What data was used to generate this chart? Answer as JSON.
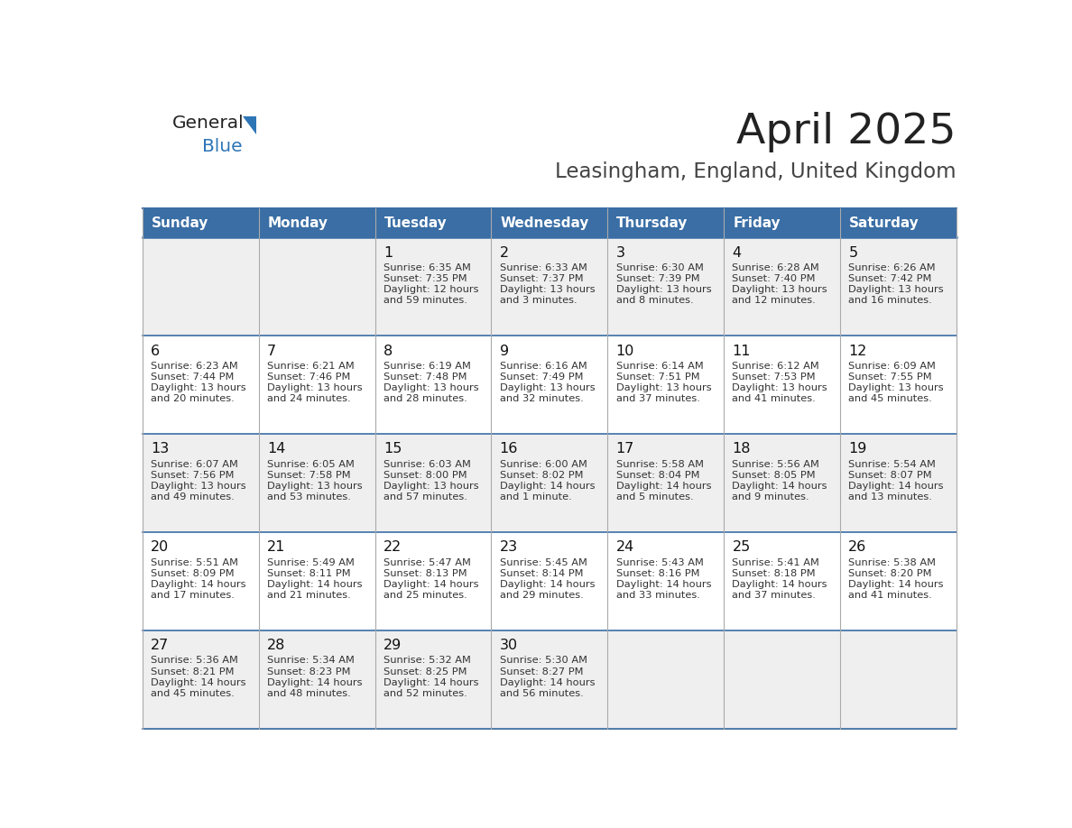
{
  "title": "April 2025",
  "subtitle": "Leasingham, England, United Kingdom",
  "header_bg": "#3a6ea5",
  "header_text": "#ffffff",
  "row_bg_odd": "#efefef",
  "row_bg_even": "#ffffff",
  "day_names": [
    "Sunday",
    "Monday",
    "Tuesday",
    "Wednesday",
    "Thursday",
    "Friday",
    "Saturday"
  ],
  "days": [
    {
      "day": 1,
      "col": 2,
      "row": 0,
      "sunrise": "6:35 AM",
      "sunset": "7:35 PM",
      "daylight": "12 hours",
      "daylight2": "and 59 minutes."
    },
    {
      "day": 2,
      "col": 3,
      "row": 0,
      "sunrise": "6:33 AM",
      "sunset": "7:37 PM",
      "daylight": "13 hours",
      "daylight2": "and 3 minutes."
    },
    {
      "day": 3,
      "col": 4,
      "row": 0,
      "sunrise": "6:30 AM",
      "sunset": "7:39 PM",
      "daylight": "13 hours",
      "daylight2": "and 8 minutes."
    },
    {
      "day": 4,
      "col": 5,
      "row": 0,
      "sunrise": "6:28 AM",
      "sunset": "7:40 PM",
      "daylight": "13 hours",
      "daylight2": "and 12 minutes."
    },
    {
      "day": 5,
      "col": 6,
      "row": 0,
      "sunrise": "6:26 AM",
      "sunset": "7:42 PM",
      "daylight": "13 hours",
      "daylight2": "and 16 minutes."
    },
    {
      "day": 6,
      "col": 0,
      "row": 1,
      "sunrise": "6:23 AM",
      "sunset": "7:44 PM",
      "daylight": "13 hours",
      "daylight2": "and 20 minutes."
    },
    {
      "day": 7,
      "col": 1,
      "row": 1,
      "sunrise": "6:21 AM",
      "sunset": "7:46 PM",
      "daylight": "13 hours",
      "daylight2": "and 24 minutes."
    },
    {
      "day": 8,
      "col": 2,
      "row": 1,
      "sunrise": "6:19 AM",
      "sunset": "7:48 PM",
      "daylight": "13 hours",
      "daylight2": "and 28 minutes."
    },
    {
      "day": 9,
      "col": 3,
      "row": 1,
      "sunrise": "6:16 AM",
      "sunset": "7:49 PM",
      "daylight": "13 hours",
      "daylight2": "and 32 minutes."
    },
    {
      "day": 10,
      "col": 4,
      "row": 1,
      "sunrise": "6:14 AM",
      "sunset": "7:51 PM",
      "daylight": "13 hours",
      "daylight2": "and 37 minutes."
    },
    {
      "day": 11,
      "col": 5,
      "row": 1,
      "sunrise": "6:12 AM",
      "sunset": "7:53 PM",
      "daylight": "13 hours",
      "daylight2": "and 41 minutes."
    },
    {
      "day": 12,
      "col": 6,
      "row": 1,
      "sunrise": "6:09 AM",
      "sunset": "7:55 PM",
      "daylight": "13 hours",
      "daylight2": "and 45 minutes."
    },
    {
      "day": 13,
      "col": 0,
      "row": 2,
      "sunrise": "6:07 AM",
      "sunset": "7:56 PM",
      "daylight": "13 hours",
      "daylight2": "and 49 minutes."
    },
    {
      "day": 14,
      "col": 1,
      "row": 2,
      "sunrise": "6:05 AM",
      "sunset": "7:58 PM",
      "daylight": "13 hours",
      "daylight2": "and 53 minutes."
    },
    {
      "day": 15,
      "col": 2,
      "row": 2,
      "sunrise": "6:03 AM",
      "sunset": "8:00 PM",
      "daylight": "13 hours",
      "daylight2": "and 57 minutes."
    },
    {
      "day": 16,
      "col": 3,
      "row": 2,
      "sunrise": "6:00 AM",
      "sunset": "8:02 PM",
      "daylight": "14 hours",
      "daylight2": "and 1 minute."
    },
    {
      "day": 17,
      "col": 4,
      "row": 2,
      "sunrise": "5:58 AM",
      "sunset": "8:04 PM",
      "daylight": "14 hours",
      "daylight2": "and 5 minutes."
    },
    {
      "day": 18,
      "col": 5,
      "row": 2,
      "sunrise": "5:56 AM",
      "sunset": "8:05 PM",
      "daylight": "14 hours",
      "daylight2": "and 9 minutes."
    },
    {
      "day": 19,
      "col": 6,
      "row": 2,
      "sunrise": "5:54 AM",
      "sunset": "8:07 PM",
      "daylight": "14 hours",
      "daylight2": "and 13 minutes."
    },
    {
      "day": 20,
      "col": 0,
      "row": 3,
      "sunrise": "5:51 AM",
      "sunset": "8:09 PM",
      "daylight": "14 hours",
      "daylight2": "and 17 minutes."
    },
    {
      "day": 21,
      "col": 1,
      "row": 3,
      "sunrise": "5:49 AM",
      "sunset": "8:11 PM",
      "daylight": "14 hours",
      "daylight2": "and 21 minutes."
    },
    {
      "day": 22,
      "col": 2,
      "row": 3,
      "sunrise": "5:47 AM",
      "sunset": "8:13 PM",
      "daylight": "14 hours",
      "daylight2": "and 25 minutes."
    },
    {
      "day": 23,
      "col": 3,
      "row": 3,
      "sunrise": "5:45 AM",
      "sunset": "8:14 PM",
      "daylight": "14 hours",
      "daylight2": "and 29 minutes."
    },
    {
      "day": 24,
      "col": 4,
      "row": 3,
      "sunrise": "5:43 AM",
      "sunset": "8:16 PM",
      "daylight": "14 hours",
      "daylight2": "and 33 minutes."
    },
    {
      "day": 25,
      "col": 5,
      "row": 3,
      "sunrise": "5:41 AM",
      "sunset": "8:18 PM",
      "daylight": "14 hours",
      "daylight2": "and 37 minutes."
    },
    {
      "day": 26,
      "col": 6,
      "row": 3,
      "sunrise": "5:38 AM",
      "sunset": "8:20 PM",
      "daylight": "14 hours",
      "daylight2": "and 41 minutes."
    },
    {
      "day": 27,
      "col": 0,
      "row": 4,
      "sunrise": "5:36 AM",
      "sunset": "8:21 PM",
      "daylight": "14 hours",
      "daylight2": "and 45 minutes."
    },
    {
      "day": 28,
      "col": 1,
      "row": 4,
      "sunrise": "5:34 AM",
      "sunset": "8:23 PM",
      "daylight": "14 hours",
      "daylight2": "and 48 minutes."
    },
    {
      "day": 29,
      "col": 2,
      "row": 4,
      "sunrise": "5:32 AM",
      "sunset": "8:25 PM",
      "daylight": "14 hours",
      "daylight2": "and 52 minutes."
    },
    {
      "day": 30,
      "col": 3,
      "row": 4,
      "sunrise": "5:30 AM",
      "sunset": "8:27 PM",
      "daylight": "14 hours",
      "daylight2": "and 56 minutes."
    }
  ],
  "num_rows": 5,
  "num_cols": 7,
  "bg_color": "#ffffff",
  "border_color": "#3a6ea5",
  "grid_line_color": "#aaaaaa",
  "cell_text_color": "#333333",
  "day_num_color": "#111111",
  "title_color": "#222222",
  "subtitle_color": "#444444",
  "logo_general_color": "#222222",
  "logo_blue_color": "#2e75b6",
  "logo_triangle_color": "#2e75b6"
}
